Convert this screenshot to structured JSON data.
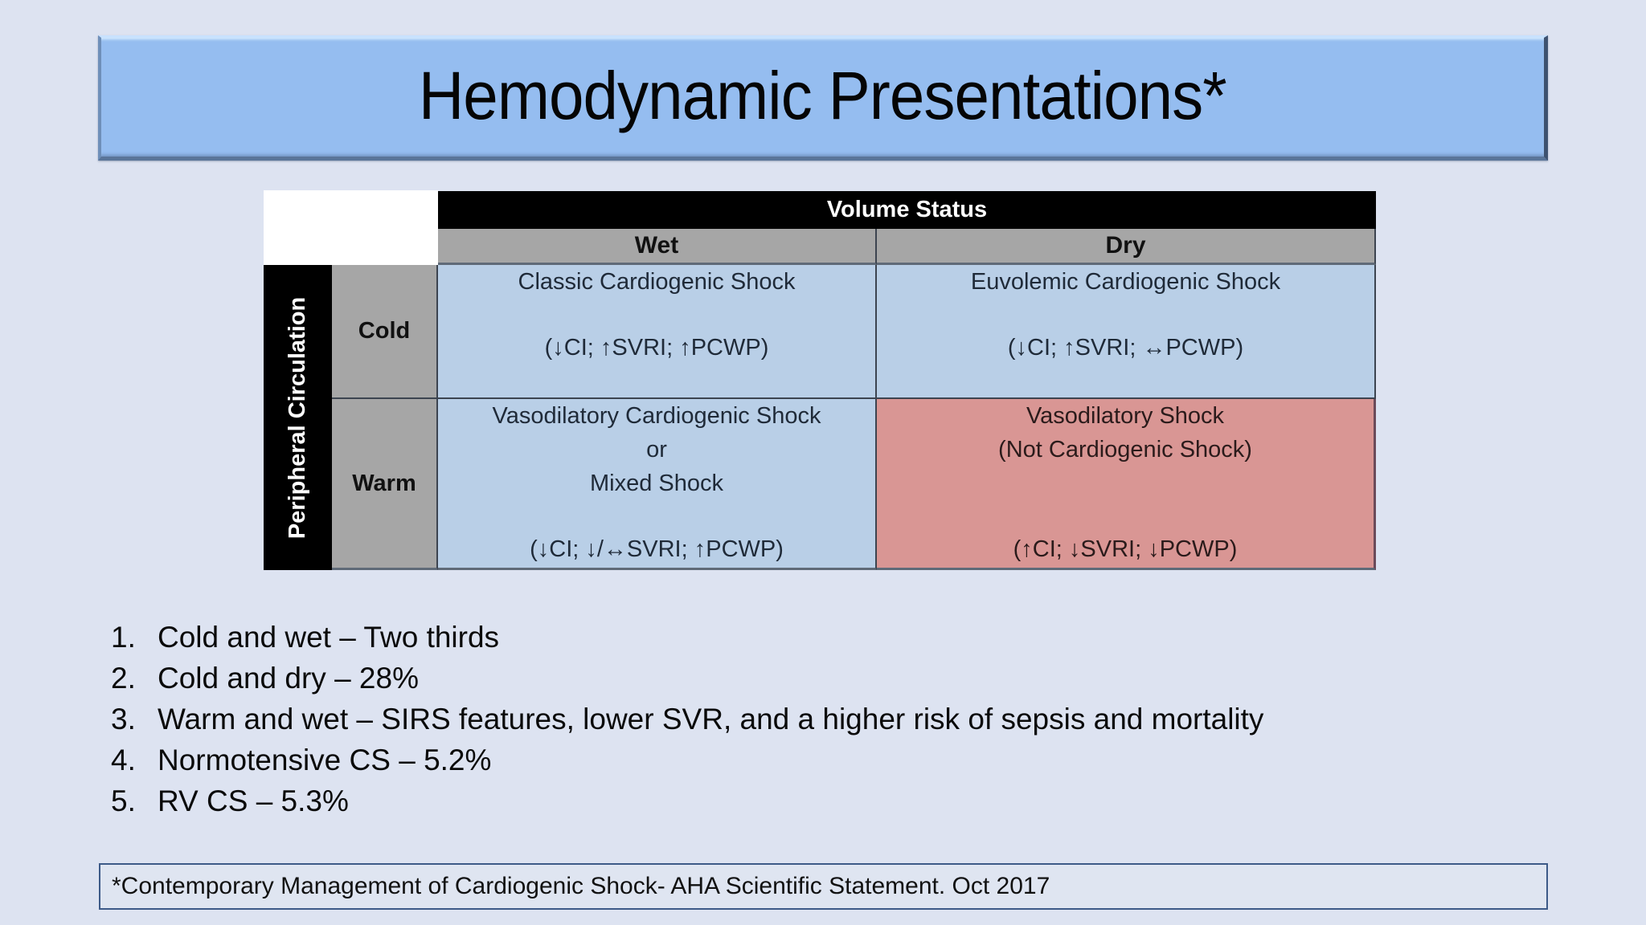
{
  "slide": {
    "title": "Hemodynamic Presentations*",
    "colors": {
      "background": "#dde3f1",
      "title_bar": "#95bdf0",
      "header_black": "#000000",
      "header_gray": "#a6a6a6",
      "cell_blue": "#b9cfe7",
      "cell_red": "#d99694",
      "footnote_border": "#3d5a88"
    }
  },
  "table": {
    "column_group_header": "Volume Status",
    "row_group_header": "Peripheral Circulation",
    "columns": [
      "Wet",
      "Dry"
    ],
    "rows": [
      {
        "label": "Cold",
        "cells": [
          {
            "title_lines": [
              "Classic Cardiogenic Shock"
            ],
            "params": "(↓CI; ↑SVRI; ↑PCWP)"
          },
          {
            "title_lines": [
              "Euvolemic Cardiogenic Shock"
            ],
            "params": "(↓CI; ↑SVRI; ↔PCWP)"
          }
        ]
      },
      {
        "label": "Warm",
        "cells": [
          {
            "title_lines": [
              "Vasodilatory Cardiogenic Shock",
              "or",
              "Mixed Shock"
            ],
            "params": "(↓CI; ↓/↔SVRI; ↑PCWP)"
          },
          {
            "title_lines": [
              "Vasodilatory Shock",
              "(Not Cardiogenic Shock)"
            ],
            "params": "(↑CI; ↓SVRI; ↓PCWP)"
          }
        ]
      }
    ]
  },
  "list": {
    "items": [
      {
        "num": "1.",
        "text": "Cold and wet – Two thirds"
      },
      {
        "num": "2.",
        "text": "Cold and dry – 28%"
      },
      {
        "num": "3.",
        "text": "Warm and wet – SIRS features, lower SVR, and a higher risk of sepsis and mortality"
      },
      {
        "num": "4.",
        "text": "Normotensive CS – 5.2%"
      },
      {
        "num": "5.",
        "text": "RV CS – 5.3%"
      }
    ]
  },
  "footnote": {
    "text": "*Contemporary Management of Cardiogenic Shock- AHA Scientific Statement. Oct 2017"
  }
}
